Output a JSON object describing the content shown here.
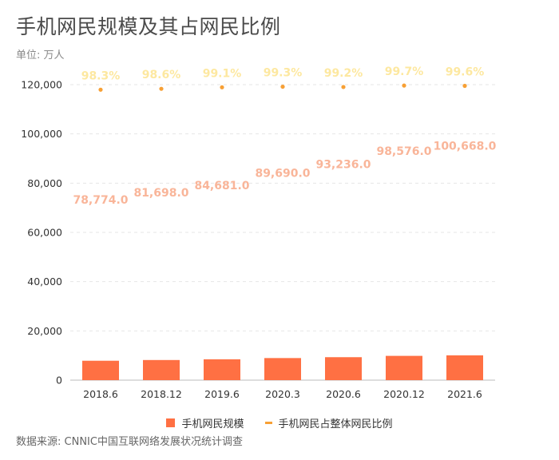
{
  "title": "手机网民规模及其占网民比例",
  "unit": "单位: 万人",
  "source": "数据来源: CNNIC中国互联网络发展状况统计调查",
  "legend": {
    "bar": "手机网民规模",
    "line": "手机网民占整体网民比例"
  },
  "colors": {
    "bar": "#ff7043",
    "bar_label": "#f9b599",
    "point": "#f7a035",
    "pct_label": "#fde8a0"
  },
  "chart_data": {
    "type": "bar",
    "categories": [
      "2018.6",
      "2018.12",
      "2019.6",
      "2020.3",
      "2020.6",
      "2020.12",
      "2021.6"
    ],
    "series": [
      {
        "name": "手机网民规模",
        "type": "bar",
        "values": [
          78774.0,
          81698.0,
          84681.0,
          89690.0,
          93236.0,
          98576.0,
          100668.0
        ],
        "labels": [
          "78,774.0",
          "81,698.0",
          "84,681.0",
          "89,690.0",
          "93,236.0",
          "98,576.0",
          "100,668.0"
        ]
      },
      {
        "name": "手机网民占整体网民比例",
        "type": "scatter",
        "values": [
          98.3,
          98.6,
          99.1,
          99.3,
          99.2,
          99.7,
          99.6
        ],
        "labels": [
          "98.3%",
          "98.6%",
          "99.1%",
          "99.3%",
          "99.2%",
          "99.7%",
          "99.6%"
        ]
      }
    ],
    "y_ticks": [
      "0",
      "20,000",
      "40,000",
      "60,000",
      "80,000",
      "100,000",
      "120,000"
    ],
    "ylim": [
      0,
      120000
    ],
    "grid": true,
    "legend_position": "bottom"
  }
}
